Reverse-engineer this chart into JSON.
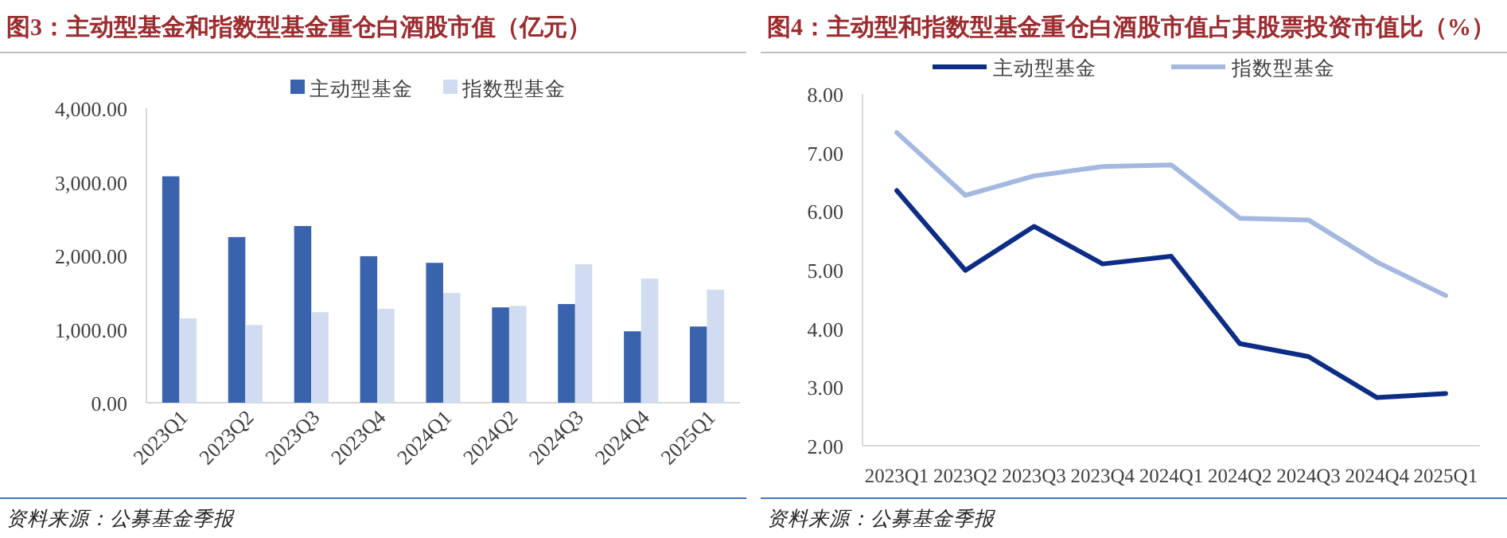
{
  "chart_data": [
    {
      "type": "bar",
      "title": "图3：主动型基金和指数型基金重仓白酒股市值（亿元）",
      "categories": [
        "2023Q1",
        "2023Q2",
        "2023Q3",
        "2023Q4",
        "2024Q1",
        "2024Q2",
        "2024Q3",
        "2024Q4",
        "2025Q1"
      ],
      "series": [
        {
          "name": "主动型基金",
          "color": "#3a63ad",
          "values": [
            3075,
            2250,
            2400,
            1990,
            1900,
            1295,
            1340,
            970,
            1035
          ]
        },
        {
          "name": "指数型基金",
          "color": "#d0dcf0",
          "values": [
            1145,
            1055,
            1230,
            1275,
            1490,
            1315,
            1880,
            1685,
            1535
          ]
        }
      ],
      "ylim": [
        0,
        4000
      ],
      "yticks": [
        {
          "value": 0,
          "label": "0.00"
        },
        {
          "value": 1000,
          "label": "1,000.00"
        },
        {
          "value": 2000,
          "label": "2,000.00"
        },
        {
          "value": 3000,
          "label": "3,000.00"
        },
        {
          "value": 4000,
          "label": "4,000.00"
        }
      ],
      "legend": "top",
      "annotations": [
        "资料来源：公募基金季报"
      ]
    },
    {
      "type": "line",
      "title": "图4：主动型和指数型基金重仓白酒股市值占其股票投资市值比（%）",
      "categories": [
        "2023Q1",
        "2023Q2",
        "2023Q3",
        "2023Q4",
        "2024Q1",
        "2024Q2",
        "2024Q3",
        "2024Q4",
        "2025Q1"
      ],
      "series": [
        {
          "name": "主动型基金",
          "color": "#0d2c84",
          "values": [
            6.35,
            4.99,
            5.74,
            5.1,
            5.23,
            3.74,
            3.52,
            2.82,
            2.89
          ]
        },
        {
          "name": "指数型基金",
          "color": "#a4b8e0",
          "values": [
            7.34,
            6.27,
            6.6,
            6.76,
            6.79,
            5.88,
            5.85,
            5.13,
            4.56
          ]
        }
      ],
      "ylim": [
        2,
        8
      ],
      "yticks": [
        {
          "value": 2,
          "label": "2.00"
        },
        {
          "value": 3,
          "label": "3.00"
        },
        {
          "value": 4,
          "label": "4.00"
        },
        {
          "value": 5,
          "label": "5.00"
        },
        {
          "value": 6,
          "label": "6.00"
        },
        {
          "value": 7,
          "label": "7.00"
        },
        {
          "value": 8,
          "label": "8.00"
        }
      ],
      "legend": "top",
      "annotations": [
        "资料来源：公募基金季报"
      ]
    }
  ]
}
